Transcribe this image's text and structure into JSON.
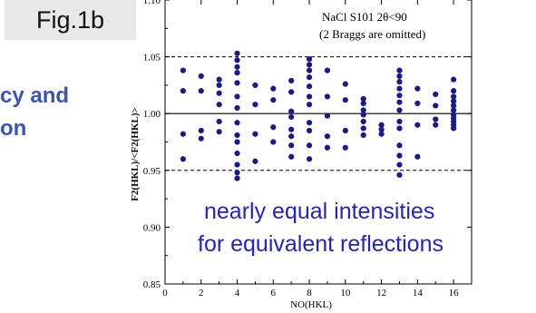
{
  "fig_label": "Fig.1b",
  "side_text": [
    "cy and",
    "on"
  ],
  "annotations": [
    "nearly equal intensities",
    "for equivalent reflections"
  ],
  "colors": {
    "points": "#1a1a8c",
    "annotation": "#2323c8",
    "side_text": "#3a55b5"
  },
  "chart_data": {
    "type": "scatter",
    "title": "",
    "legend_text": [
      "NaCl S101  2θ<90",
      "(2 Braggs are omitted)"
    ],
    "xlabel": "NO(HKL)",
    "ylabel": "F2(HKL)/<F2(HKL)>",
    "xlim": [
      0,
      17
    ],
    "ylim": [
      0.85,
      1.1
    ],
    "xticks": [
      0,
      2,
      4,
      6,
      8,
      10,
      12,
      14,
      16
    ],
    "yticks": [
      0.85,
      0.9,
      0.95,
      1.0,
      1.05,
      1.1
    ],
    "ytick_labels": [
      "0.85",
      "0.90",
      "0.95",
      "1.00",
      "1.05",
      "1.10"
    ],
    "reference_lines": [
      {
        "y": 1.0,
        "style": "solid"
      },
      {
        "y": 1.05,
        "style": "dashed"
      },
      {
        "y": 0.95,
        "style": "dashed"
      }
    ],
    "series": [
      {
        "points": [
          [
            1,
            1.038
          ],
          [
            1,
            1.02
          ],
          [
            1,
            0.982
          ],
          [
            1,
            0.96
          ],
          [
            2,
            1.033
          ],
          [
            2,
            1.02
          ],
          [
            2,
            0.985
          ],
          [
            2,
            0.978
          ],
          [
            3,
            1.03
          ],
          [
            3,
            1.025
          ],
          [
            3,
            1.018
          ],
          [
            3,
            1.008
          ],
          [
            3,
            0.993
          ],
          [
            3,
            0.984
          ],
          [
            4,
            1.053
          ],
          [
            4,
            1.047
          ],
          [
            4,
            1.041
          ],
          [
            4,
            1.036
          ],
          [
            4,
            1.027
          ],
          [
            4,
            1.015
          ],
          [
            4,
            1.005
          ],
          [
            4,
            0.992
          ],
          [
            4,
            0.981
          ],
          [
            4,
            0.975
          ],
          [
            4,
            0.965
          ],
          [
            4,
            0.955
          ],
          [
            4,
            0.948
          ],
          [
            4,
            0.943
          ],
          [
            5,
            1.025
          ],
          [
            5,
            1.008
          ],
          [
            5,
            0.982
          ],
          [
            5,
            0.958
          ],
          [
            6,
            1.022
          ],
          [
            6,
            1.012
          ],
          [
            6,
            0.988
          ],
          [
            6,
            0.975
          ],
          [
            7,
            1.029
          ],
          [
            7,
            1.019
          ],
          [
            7,
            1.002
          ],
          [
            7,
            0.997
          ],
          [
            7,
            0.986
          ],
          [
            7,
            0.98
          ],
          [
            7,
            0.972
          ],
          [
            7,
            0.962
          ],
          [
            8,
            1.048
          ],
          [
            8,
            1.043
          ],
          [
            8,
            1.038
          ],
          [
            8,
            1.032
          ],
          [
            8,
            1.024
          ],
          [
            8,
            1.015
          ],
          [
            8,
            1.008
          ],
          [
            8,
            0.992
          ],
          [
            8,
            0.985
          ],
          [
            8,
            0.972
          ],
          [
            8,
            0.96
          ],
          [
            9,
            1.038
          ],
          [
            9,
            1.015
          ],
          [
            9,
            0.998
          ],
          [
            9,
            0.98
          ],
          [
            9,
            0.97
          ],
          [
            10,
            1.026
          ],
          [
            10,
            1.012
          ],
          [
            10,
            0.985
          ],
          [
            10,
            0.97
          ],
          [
            11,
            1.013
          ],
          [
            11,
            1.009
          ],
          [
            11,
            1.003
          ],
          [
            11,
            0.999
          ],
          [
            11,
            0.993
          ],
          [
            11,
            0.987
          ],
          [
            11,
            0.981
          ],
          [
            12,
            0.99
          ],
          [
            12,
            0.986
          ],
          [
            12,
            0.982
          ],
          [
            13,
            1.038
          ],
          [
            13,
            1.033
          ],
          [
            13,
            1.028
          ],
          [
            13,
            1.022
          ],
          [
            13,
            1.016
          ],
          [
            13,
            1.01
          ],
          [
            13,
            1.003
          ],
          [
            13,
            0.993
          ],
          [
            13,
            0.987
          ],
          [
            13,
            0.972
          ],
          [
            13,
            0.963
          ],
          [
            13,
            0.955
          ],
          [
            13,
            0.946
          ],
          [
            14,
            1.022
          ],
          [
            14,
            1.009
          ],
          [
            14,
            0.99
          ],
          [
            14,
            0.962
          ],
          [
            15,
            1.017
          ],
          [
            15,
            1.007
          ],
          [
            15,
            0.995
          ],
          [
            15,
            0.99
          ],
          [
            16,
            1.03
          ],
          [
            16,
            1.02
          ],
          [
            16,
            1.015
          ],
          [
            16,
            1.011
          ],
          [
            16,
            1.007
          ],
          [
            16,
            1.003
          ],
          [
            16,
            0.999
          ],
          [
            16,
            0.996
          ],
          [
            16,
            0.993
          ],
          [
            16,
            0.99
          ],
          [
            16,
            0.987
          ]
        ]
      }
    ]
  }
}
